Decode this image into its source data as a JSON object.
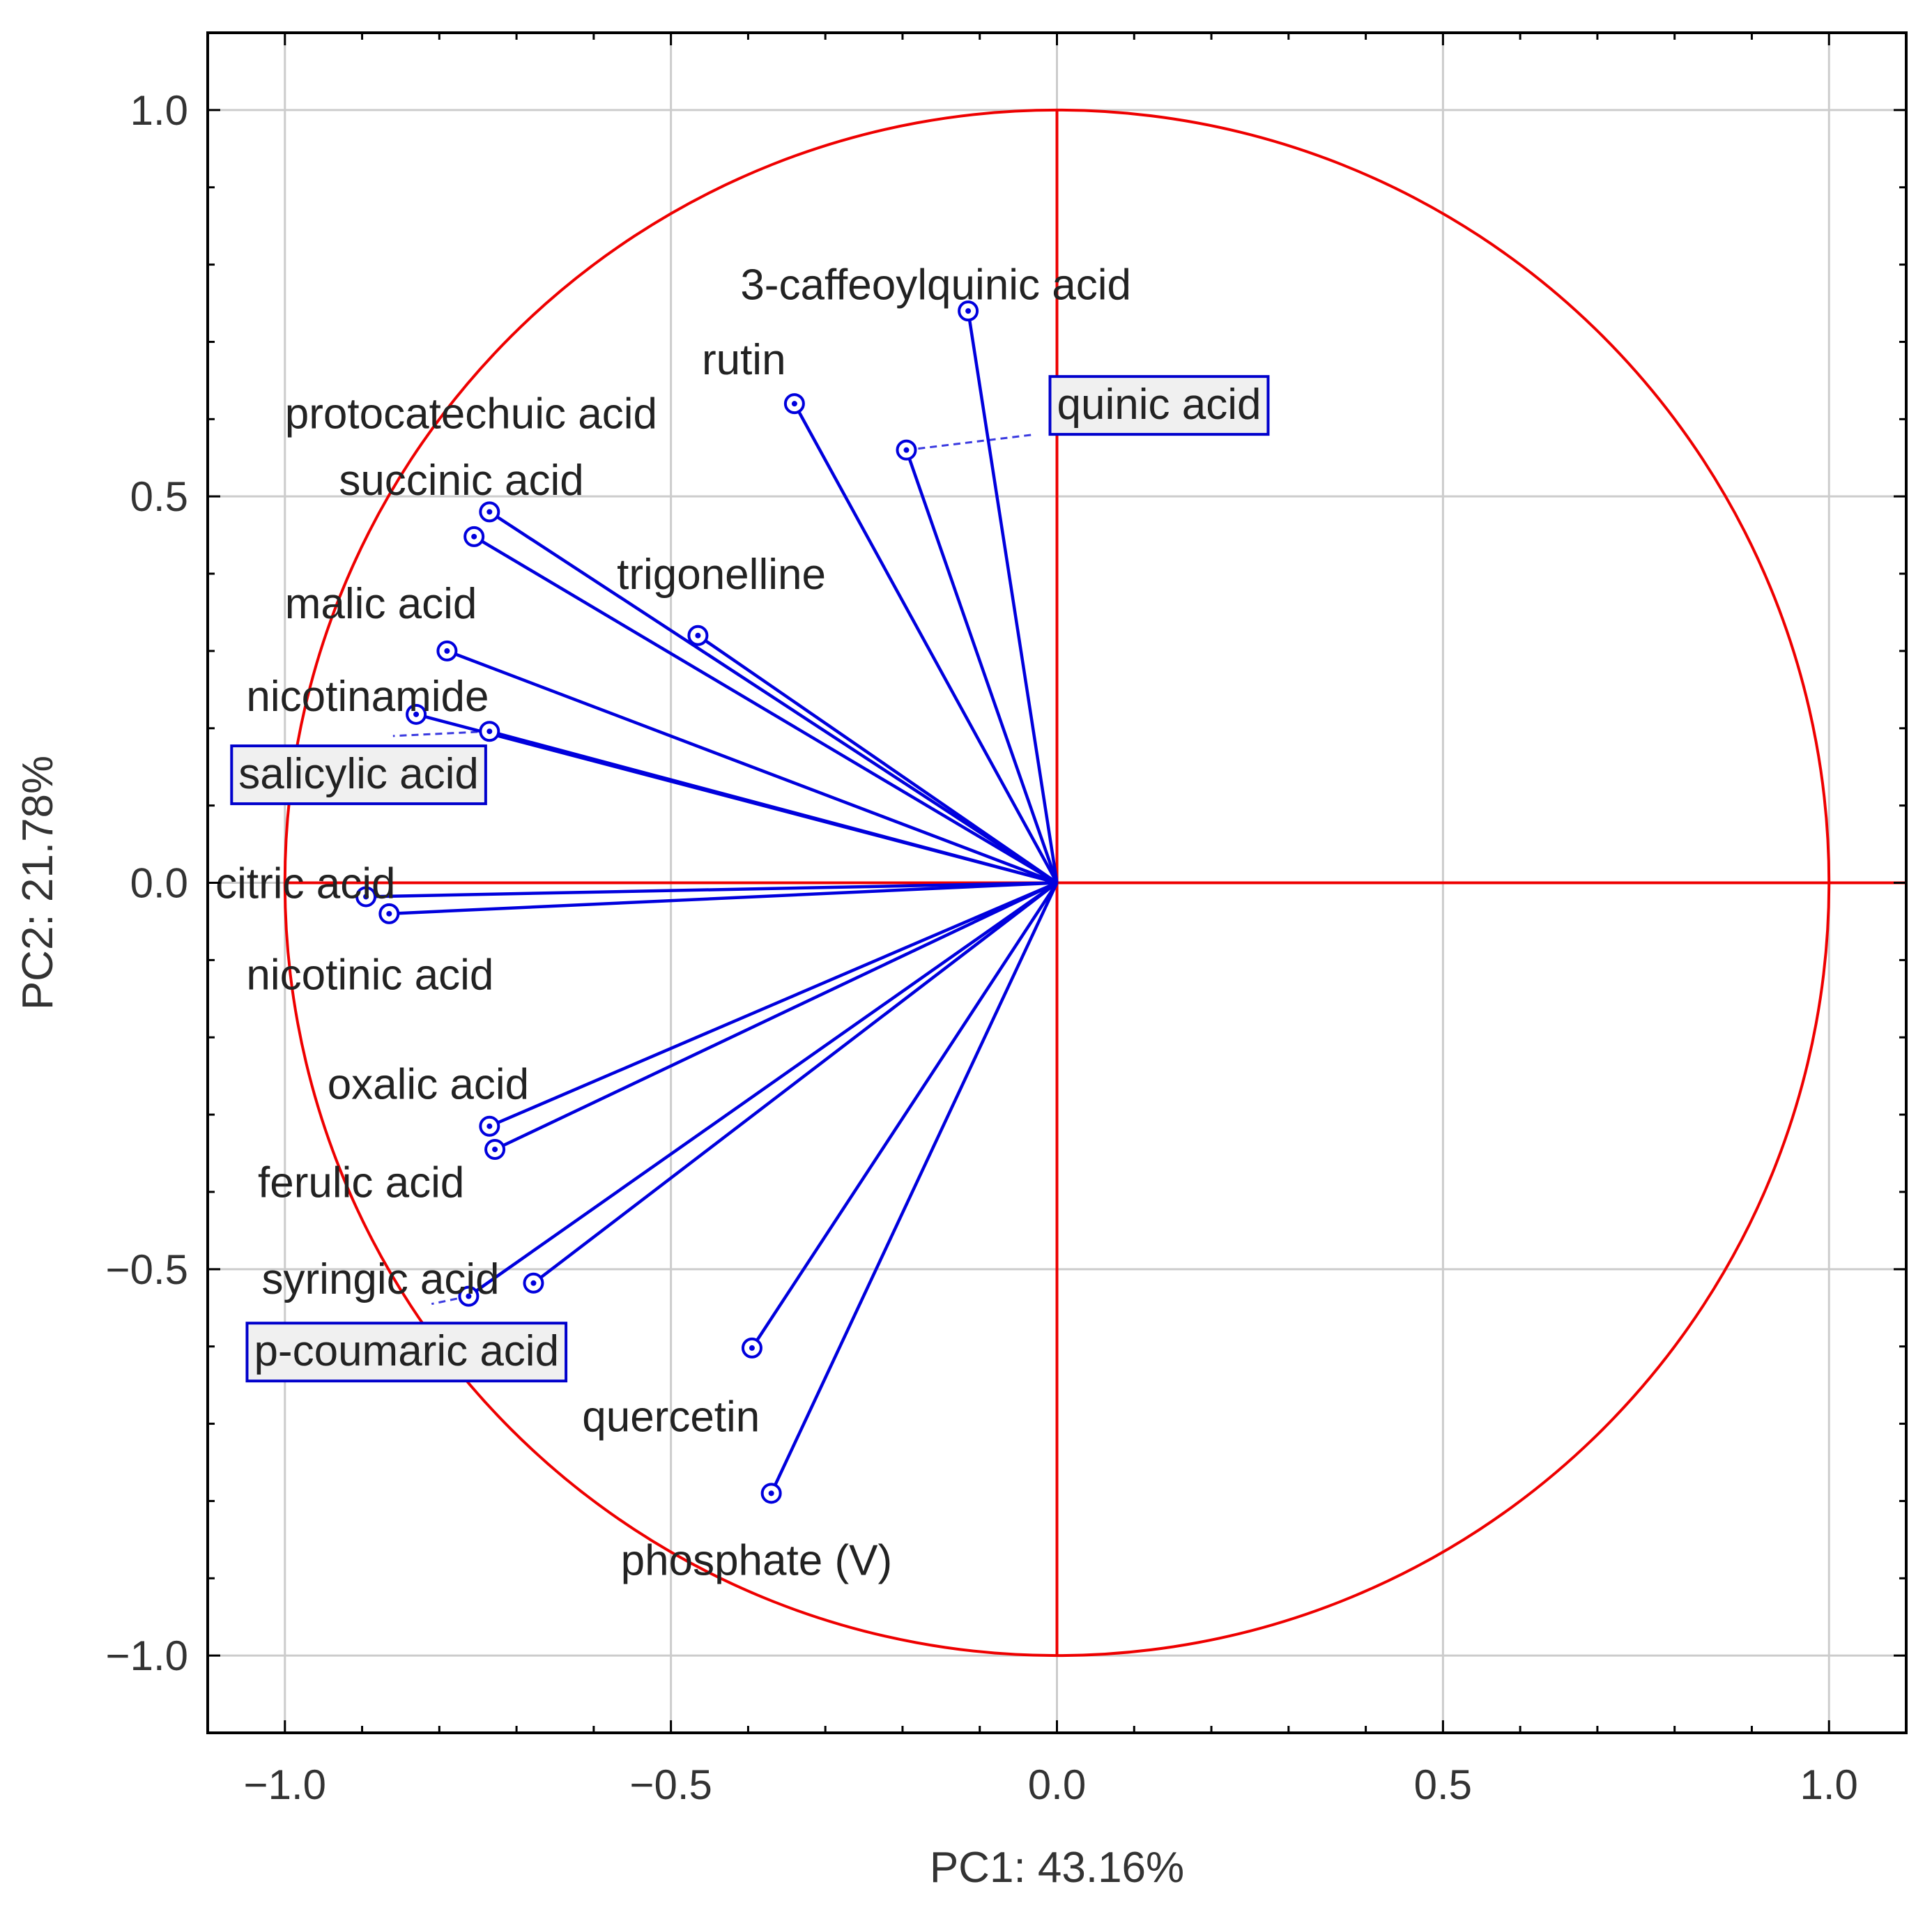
{
  "chart_data": {
    "type": "scatter",
    "subtype": "pca-loading-plot",
    "xlabel": "PC1: 43.16%",
    "ylabel": "PC2: 21.78%",
    "xlim": [
      -1.1,
      1.1
    ],
    "ylim": [
      -1.1,
      1.1
    ],
    "xticks": [
      -1.0,
      -0.5,
      0.0,
      0.5,
      1.0
    ],
    "yticks": [
      -1.0,
      -0.5,
      0.0,
      0.5,
      1.0
    ],
    "xtick_labels": [
      "−1.0",
      "−0.5",
      "0.0",
      "0.5",
      "1.0"
    ],
    "ytick_labels": [
      "−1.0",
      "−0.5",
      "0.0",
      "0.5",
      "1.0"
    ],
    "grid": true,
    "unit_circle": true,
    "colors": {
      "circle": "#ee0000",
      "vectors": "#0000dd",
      "grid": "#cccccc"
    },
    "points": [
      {
        "name": "3-caffeoylquinic acid",
        "x": -0.115,
        "y": 0.74,
        "label_x": -0.41,
        "label_y": 0.775,
        "boxed": false
      },
      {
        "name": "rutin",
        "x": -0.34,
        "y": 0.62,
        "label_x": -0.46,
        "label_y": 0.678,
        "boxed": false
      },
      {
        "name": "quinic acid",
        "x": -0.195,
        "y": 0.56,
        "label_x": 0.0,
        "label_y": 0.62,
        "boxed": true,
        "dashed": true,
        "leader_to": [
          -0.03,
          0.58
        ]
      },
      {
        "name": "protocatechuic acid",
        "x": -0.735,
        "y": 0.48,
        "label_x": -1.0,
        "label_y": 0.608,
        "boxed": false
      },
      {
        "name": "succinic acid",
        "x": -0.755,
        "y": 0.448,
        "label_x": -0.93,
        "label_y": 0.522,
        "boxed": false
      },
      {
        "name": "trigonelline",
        "x": -0.465,
        "y": 0.32,
        "label_x": -0.57,
        "label_y": 0.4,
        "boxed": false
      },
      {
        "name": "malic acid",
        "x": -0.79,
        "y": 0.3,
        "label_x": -1.0,
        "label_y": 0.362,
        "boxed": false
      },
      {
        "name": "nicotinamide",
        "x": -0.83,
        "y": 0.218,
        "label_x": -1.05,
        "label_y": 0.242,
        "boxed": false
      },
      {
        "name": "salicylic acid",
        "x": -0.735,
        "y": 0.196,
        "label_x": -1.06,
        "label_y": 0.142,
        "boxed": true,
        "dashed": true,
        "leader_to": [
          -0.86,
          0.19
        ]
      },
      {
        "name": "citric acid",
        "x": -0.895,
        "y": -0.018,
        "label_x": -1.09,
        "label_y": 0.0,
        "boxed": false
      },
      {
        "name": "nicotinic acid",
        "x": -0.865,
        "y": -0.04,
        "label_x": -1.05,
        "label_y": -0.118,
        "boxed": false
      },
      {
        "name": "oxalic acid",
        "x": -0.735,
        "y": -0.315,
        "label_x": -0.945,
        "label_y": -0.26,
        "boxed": false
      },
      {
        "name": "ferulic acid",
        "x": -0.728,
        "y": -0.345,
        "label_x": -1.035,
        "label_y": -0.387,
        "boxed": false
      },
      {
        "name": "syringic acid",
        "x": -0.678,
        "y": -0.518,
        "label_x": -1.03,
        "label_y": -0.512,
        "boxed": false
      },
      {
        "name": "p-coumaric acid",
        "x": -0.762,
        "y": -0.535,
        "label_x": -1.04,
        "label_y": -0.605,
        "boxed": true,
        "dashed": true,
        "leader_to": [
          -0.81,
          -0.545
        ]
      },
      {
        "name": "quercetin",
        "x": -0.395,
        "y": -0.602,
        "label_x": -0.615,
        "label_y": -0.69,
        "boxed": false
      },
      {
        "name": "phosphate (V)",
        "x": -0.37,
        "y": -0.79,
        "label_x": -0.565,
        "label_y": -0.876,
        "boxed": false
      }
    ]
  }
}
